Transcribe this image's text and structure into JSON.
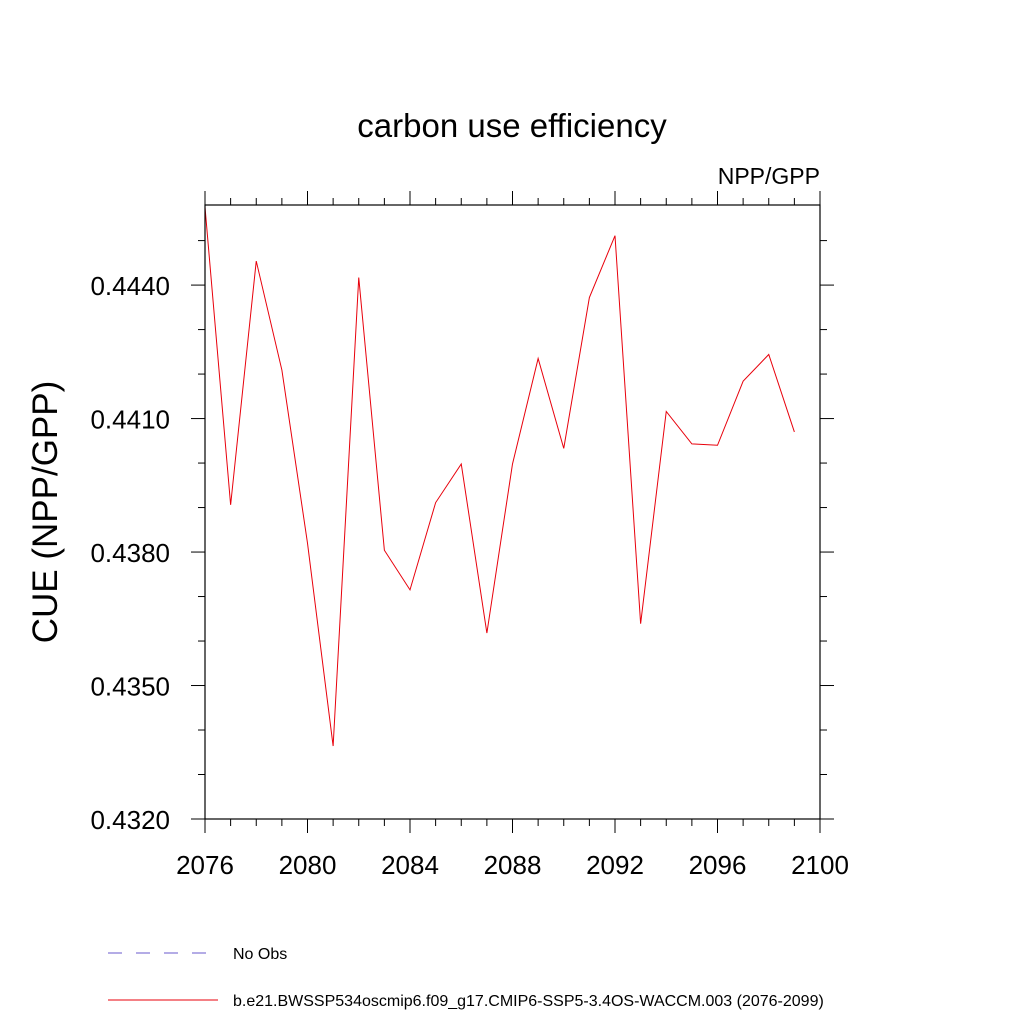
{
  "chart_data": {
    "type": "line",
    "title": "carbon use efficiency",
    "subtitle": "NPP/GPP",
    "xlabel": "",
    "ylabel": "CUE  (NPP/GPP)",
    "xlim": [
      2076,
      2100
    ],
    "ylim": [
      0.432,
      0.4458
    ],
    "xticks": [
      2076,
      2080,
      2084,
      2088,
      2092,
      2096,
      2100
    ],
    "xtick_labels": [
      "2076",
      "2080",
      "2084",
      "2088",
      "2092",
      "2096",
      "2100"
    ],
    "yticks": [
      0.432,
      0.435,
      0.438,
      0.441,
      0.444
    ],
    "ytick_labels": [
      "0.4320",
      "0.4350",
      "0.4380",
      "0.4410",
      "0.4440"
    ],
    "grid": false,
    "x": [
      2076,
      2077,
      2078,
      2079,
      2080,
      2081,
      2082,
      2083,
      2084,
      2085,
      2086,
      2087,
      2088,
      2089,
      2090,
      2091,
      2092,
      2093,
      2094,
      2095,
      2096,
      2097,
      2098,
      2099
    ],
    "series": [
      {
        "name": "b.e21.BWSSP534oscmip6.f09_g17.CMIP6-SSP5-3.4OS-WACCM.003 (2076-2099)",
        "color": "#e8000b",
        "values": [
          0.44575,
          0.43906,
          0.44454,
          0.44209,
          0.4382,
          0.43364,
          0.44417,
          0.43804,
          0.43715,
          0.43911,
          0.43998,
          0.43618,
          0.43998,
          0.44235,
          0.44033,
          0.44372,
          0.44511,
          0.43639,
          0.44116,
          0.44043,
          0.4404,
          0.44184,
          0.44244,
          0.4407
        ]
      }
    ],
    "legend": {
      "placement": "bottom-left",
      "entries": [
        {
          "label": "No Obs",
          "style": "dashed",
          "color": "#6a5acd"
        },
        {
          "label": "b.e21.BWSSP534oscmip6.f09_g17.CMIP6-SSP5-3.4OS-WACCM.003 (2076-2099)",
          "style": "solid",
          "color": "#e8000b"
        }
      ]
    }
  }
}
